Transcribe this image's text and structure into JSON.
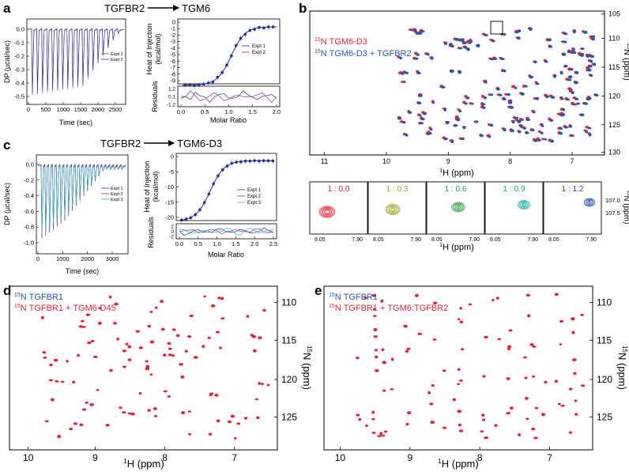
{
  "panel_a": {
    "label": "a",
    "arrow_from": "TGFBR2",
    "arrow_to": "TGM6",
    "thermogram": {
      "ylabel": "DP (µcal/sec)",
      "xlabel": "Time (sec)",
      "x_ticks": [
        "0",
        "500",
        "1000",
        "1500",
        "2000",
        "2500"
      ],
      "y_ticks": [
        "0.0",
        "-0.1",
        "-0.2",
        "-0.3",
        "-0.4",
        "-0.5"
      ],
      "legend": [
        "Expt 1",
        "Expt 2"
      ],
      "series_colors": [
        "#9b2d8a",
        "#1f2f8f"
      ]
    },
    "isotherm": {
      "ylabel": "Heat of Injection (kcal/mol)",
      "residual_label": "Residuals",
      "xlabel": "Molar Ratio",
      "x_ticks": [
        "0.0",
        "0.5",
        "1.0",
        "1.5",
        "2.0"
      ],
      "y_ticks": [
        "0",
        "-1",
        "-2",
        "-3",
        "-4",
        "-5",
        "-6",
        "-7",
        "-8",
        "-9"
      ],
      "residual_ticks": [
        "1.2",
        "0.1",
        "-1.2"
      ],
      "legend": [
        "Expt 1",
        "Expt 2"
      ]
    }
  },
  "panel_c": {
    "label": "c",
    "arrow_from": "TGFBR2",
    "arrow_to": "TGM6-D3",
    "thermogram": {
      "ylabel": "DP (µcal/sec)",
      "xlabel": "Time (sec)",
      "x_ticks": [
        "0",
        "1000",
        "2000",
        "3000"
      ],
      "y_ticks": [
        "0.0",
        "-0.2",
        "-0.4",
        "-0.6",
        "-0.8",
        "-1.0"
      ],
      "legend": [
        "Expt 1",
        "Expt 2",
        "Expt 3"
      ],
      "series_colors": [
        "#1f2f8f",
        "#9b2d8a",
        "#2bb7c9"
      ]
    },
    "isotherm": {
      "ylabel": "Heat of Injection (kcal/mol)",
      "residual_label": "Residuals",
      "xlabel": "Molar Ratio",
      "x_ticks": [
        "0.0",
        "0.5",
        "1.0",
        "1.5",
        "2.0",
        "2.5"
      ],
      "y_ticks": [
        "0",
        "-5",
        "-10",
        "-15",
        "-20"
      ],
      "residual_ticks": [
        "2",
        "0",
        "-2"
      ],
      "legend": [
        "Expt 1",
        "Expt 2",
        "Expt 3"
      ]
    }
  },
  "panel_b": {
    "label": "b",
    "legend": [
      "N TGM6-D3",
      "N TGM6-D3 + TGFBR2"
    ],
    "legend_colors": [
      "#e0263a",
      "#2456b0"
    ],
    "xlabel": "H (ppm)",
    "ylabel": "N (ppm)",
    "x_ticks": [
      "11",
      "10",
      "9",
      "8",
      "7"
    ],
    "y_ticks": [
      "105",
      "110",
      "115",
      "120",
      "125",
      "130"
    ],
    "titration": {
      "ratios": [
        "1 : 0.0",
        "1 : 0.3",
        "1 : 0.6",
        "1 : 0.9",
        "1 : 1.2"
      ],
      "colors": [
        "#e0263a",
        "#a6a52a",
        "#2ea043",
        "#1aa59a",
        "#2a4aa6"
      ],
      "x_ticks": [
        "8.05",
        "7.90"
      ],
      "y_ticks": [
        "107.0",
        "107.5"
      ],
      "xlabel": "H (ppm)",
      "ylabel": "N (ppm)"
    }
  },
  "panel_d": {
    "label": "d",
    "legend": [
      "N TGFBR1",
      "N TGFBR1 + TGM6-D45"
    ],
    "legend_colors": [
      "#2456b0",
      "#e0263a"
    ],
    "xlabel": "H (ppm)",
    "ylabel": "N (ppm)",
    "x_ticks": [
      "10",
      "9",
      "8",
      "7"
    ],
    "y_ticks": [
      "110",
      "115",
      "120",
      "125"
    ]
  },
  "panel_e": {
    "label": "e",
    "legend": [
      "N TGFBR1",
      "N TGFBR1 + TGM6:TGFBR2"
    ],
    "legend_colors": [
      "#2456b0",
      "#e0263a"
    ],
    "xlabel": "H (ppm)",
    "ylabel": "N (ppm)",
    "x_ticks": [
      "10",
      "9",
      "8",
      "7"
    ],
    "y_ticks": [
      "110",
      "115",
      "120",
      "125"
    ]
  },
  "isotope_superscripts": {
    "n": "15",
    "h": "1"
  }
}
